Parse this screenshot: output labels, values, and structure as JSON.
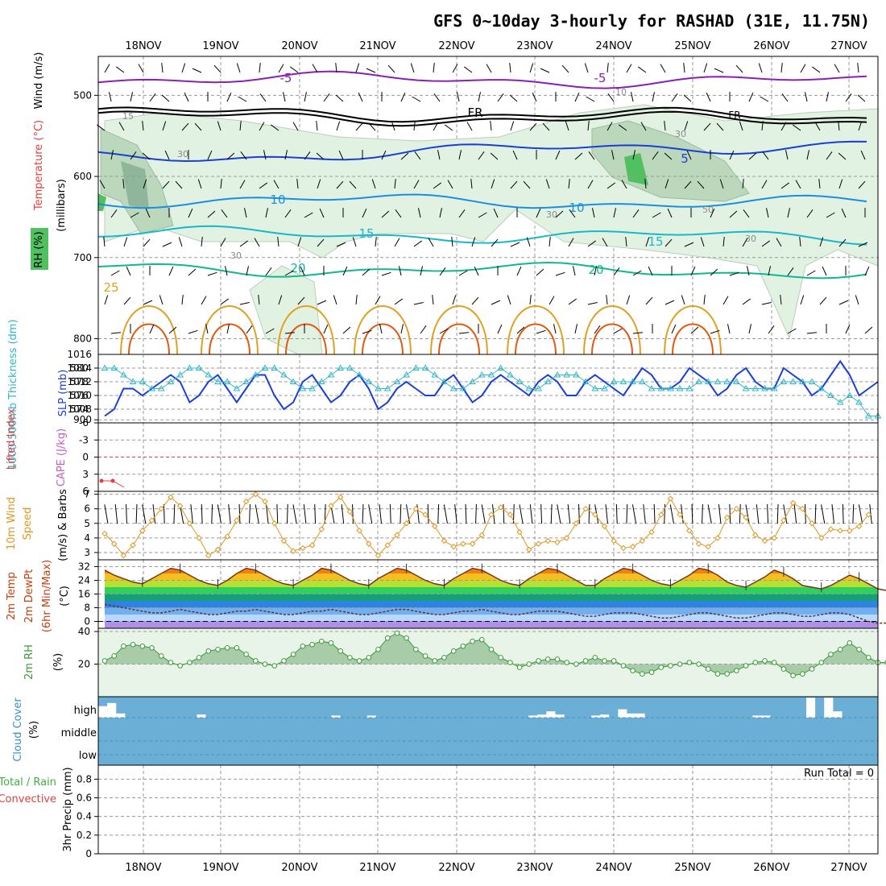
{
  "title": "GFS 0~10day 3-hourly for RASHAD (31E, 11.75N)",
  "dates": [
    "18NOV",
    "19NOV",
    "20NOV",
    "21NOV",
    "22NOV",
    "23NOV",
    "24NOV",
    "25NOV",
    "26NOV",
    "27NOV"
  ],
  "colors": {
    "purple": "#8a1fb8",
    "black": "#000000",
    "blue": "#1b3fd6",
    "lightblue": "#1a8fe0",
    "cyan": "#18b8c8",
    "teal": "#10b890",
    "orange": "#e0a020",
    "darkorange": "#e05a10",
    "rh_light": "#e2f2e2",
    "rh_mid": "#bcd8bc",
    "rh_dark": "#8fb59a",
    "rh_bright": "#50c060",
    "slp": "#1b3fd6",
    "thick": "#30b8c8",
    "li": "#e04040",
    "wind10": "#e0961e",
    "cloud": "#6baed6",
    "rh2m": "#3a9a3a",
    "rh2m_fill": "#a8cca8"
  },
  "chart_data": [
    {
      "type": "contour",
      "panel": "upper-air",
      "ylabel": "(millibars)",
      "side_labels": [
        "Wind (m/s)",
        "Temperature (°C)",
        "RH (%)"
      ],
      "y_ticks": [
        500,
        600,
        700,
        800,
        900
      ],
      "ylim": [
        1000,
        450
      ],
      "temperature_isotherms": [
        {
          "label": "-5",
          "level_mb": 488
        },
        {
          "label": "FR",
          "level_mb": 545
        },
        {
          "label": "5",
          "level_mb": 630
        },
        {
          "label": "10",
          "level_mb": 700
        },
        {
          "label": "15",
          "level_mb": 760
        },
        {
          "label": "20",
          "level_mb": 820
        },
        {
          "label": "25",
          "level_mb": 860
        }
      ],
      "rh_contour_labels": [
        "10",
        "15",
        "30",
        "30",
        "30",
        "30",
        "30",
        "50"
      ]
    },
    {
      "type": "line",
      "panel": "slp-thickness",
      "series": [
        {
          "name": "SLP (mb)",
          "axis": "right",
          "values": [
            1007,
            1008,
            1011,
            1011,
            1010,
            1011,
            1012,
            1013,
            1012,
            1009,
            1010,
            1012,
            1013,
            1011,
            1009,
            1011,
            1013,
            1013,
            1010,
            1008,
            1009,
            1012,
            1013,
            1011,
            1009,
            1010,
            1012,
            1013,
            1011,
            1008,
            1009,
            1011,
            1012,
            1011,
            1010,
            1010,
            1012,
            1013,
            1011,
            1009,
            1010,
            1012,
            1013,
            1012,
            1011,
            1010,
            1012,
            1013,
            1012,
            1010,
            1010,
            1012,
            1013,
            1012,
            1011,
            1010,
            1012,
            1014,
            1013,
            1011,
            1011,
            1012,
            1014,
            1013,
            1012,
            1010,
            1011,
            1013,
            1014,
            1012,
            1011,
            1011,
            1014,
            1013,
            1012,
            1010,
            1011,
            1013,
            1015,
            1013,
            1010,
            1011,
            1012
          ]
        },
        {
          "name": "1000-500mb Thickness (dm)",
          "axis": "left",
          "values": [
            580,
            580,
            579,
            578,
            578,
            577,
            577,
            578,
            579,
            580,
            580,
            579,
            578,
            578,
            577,
            578,
            579,
            580,
            580,
            579,
            578,
            577,
            577,
            578,
            579,
            580,
            580,
            579,
            578,
            577,
            577,
            578,
            579,
            580,
            580,
            579,
            578,
            577,
            577,
            578,
            579,
            579,
            580,
            579,
            578,
            577,
            577,
            578,
            579,
            579,
            579,
            578,
            577,
            577,
            578,
            578,
            578,
            578,
            577,
            577,
            577,
            577,
            577,
            578,
            578,
            578,
            578,
            578,
            577,
            577,
            577,
            577,
            578,
            578,
            578,
            578,
            577,
            576,
            575,
            576,
            575,
            573,
            573
          ]
        }
      ],
      "left_ticks": [
        574,
        576,
        578,
        580
      ],
      "right_ticks": [
        1008,
        1010,
        1012,
        1014,
        1016
      ]
    },
    {
      "type": "line",
      "panel": "instability",
      "series": [
        {
          "name": "Lifted Index",
          "values": [
            5,
            5,
            6
          ]
        },
        {
          "name": "CAPE (J/kg)",
          "values": []
        }
      ],
      "y_ticks": [
        "-6",
        "-3",
        "0",
        "3",
        "6"
      ],
      "ylim": [
        6,
        -6
      ]
    },
    {
      "type": "line",
      "panel": "wind-10m",
      "ylabel": "10m Wind Speed (m/s) & Barbs",
      "y_ticks": [
        3,
        4,
        5,
        6,
        7
      ],
      "ylim": [
        2.5,
        7.2
      ],
      "values": [
        4.3,
        3.6,
        2.8,
        3.5,
        4.5,
        5.2,
        6.0,
        6.8,
        6.2,
        5.0,
        4.0,
        2.8,
        3.2,
        4.1,
        5.2,
        6.5,
        7.0,
        6.5,
        5.0,
        3.8,
        3.1,
        3.3,
        3.5,
        4.6,
        6.2,
        6.8,
        5.8,
        4.5,
        3.6,
        2.8,
        3.5,
        4.2,
        5.0,
        6.0,
        5.6,
        4.8,
        3.8,
        3.4,
        3.6,
        3.6,
        4.2,
        5.6,
        6.1,
        5.6,
        4.4,
        3.2,
        3.6,
        3.8,
        3.7,
        4.0,
        5.0,
        6.0,
        5.6,
        4.8,
        3.8,
        3.3,
        3.4,
        3.8,
        4.4,
        5.6,
        6.7,
        5.6,
        4.5,
        3.6,
        3.4,
        4.0,
        5.4,
        6.0,
        5.4,
        4.2,
        3.8,
        4.0,
        5.2,
        6.4,
        6.0,
        5.0,
        4.0,
        4.6,
        4.5,
        4.5,
        4.8,
        5.6
      ]
    },
    {
      "type": "area",
      "panel": "temperature-2m",
      "ylabel": "2m Temp / 2m DewPt (6hr Min/Max) (°C)",
      "y_ticks": [
        0,
        8,
        16,
        24,
        32
      ],
      "ylim": [
        -4,
        36
      ],
      "temperature": [
        30,
        27,
        25,
        23,
        22,
        25,
        28,
        31,
        30,
        27,
        24,
        22,
        21,
        24,
        28,
        31,
        30,
        27,
        24,
        22,
        21,
        24,
        27,
        31,
        30,
        27,
        24,
        22,
        21,
        25,
        28,
        31,
        30,
        27,
        24,
        22,
        21,
        25,
        28,
        31,
        30,
        27,
        24,
        22,
        21,
        25,
        28,
        31,
        30,
        27,
        24,
        21,
        21,
        25,
        28,
        31,
        30,
        27,
        24,
        22,
        21,
        24,
        27,
        31,
        30,
        27,
        23,
        21,
        20,
        23,
        26,
        30,
        28,
        25,
        21,
        20,
        19,
        21,
        24,
        27,
        25,
        22,
        19,
        18,
        16,
        15,
        17
      ],
      "dewpoint": [
        10,
        9,
        8,
        7,
        6,
        5,
        5,
        6,
        7,
        6,
        5,
        4,
        4,
        5,
        6,
        6,
        7,
        6,
        5,
        4,
        4,
        5,
        6,
        6,
        7,
        6,
        5,
        4,
        4,
        5,
        6,
        7,
        7,
        6,
        5,
        4,
        4,
        5,
        6,
        6,
        7,
        6,
        5,
        4,
        4,
        5,
        6,
        6,
        6,
        5,
        4,
        3,
        3,
        4,
        5,
        5,
        5,
        4,
        3,
        2,
        2,
        3,
        4,
        5,
        5,
        4,
        3,
        2,
        2,
        3,
        4,
        5,
        5,
        4,
        3,
        3,
        4,
        5,
        5,
        4,
        2,
        0,
        -1,
        -1,
        1,
        2,
        3
      ]
    },
    {
      "type": "area",
      "panel": "rh-2m",
      "ylabel": "2m RH (%)",
      "y_ticks": [
        20,
        40
      ],
      "ylim": [
        0,
        42
      ],
      "values": [
        22,
        25,
        31,
        32,
        31,
        30,
        25,
        21,
        19,
        21,
        24,
        28,
        29,
        30,
        30,
        26,
        22,
        20,
        19,
        22,
        26,
        31,
        32,
        34,
        33,
        28,
        24,
        22,
        24,
        29,
        36,
        39,
        36,
        29,
        25,
        22,
        24,
        28,
        31,
        34,
        35,
        29,
        24,
        21,
        18,
        20,
        22,
        23,
        23,
        21,
        20,
        22,
        24,
        22,
        22,
        19,
        16,
        14,
        15,
        18,
        19,
        20,
        21,
        20,
        17,
        14,
        14,
        16,
        19,
        21,
        22,
        21,
        17,
        13,
        14,
        17,
        21,
        26,
        29,
        33,
        29,
        24,
        21,
        21,
        24,
        26
      ]
    },
    {
      "type": "bar",
      "panel": "cloud-cover",
      "ylabel": "Cloud Cover (%)",
      "levels": [
        "high",
        "middle",
        "low"
      ],
      "high_clear_fraction": [
        0.55,
        0.7,
        0.2,
        0,
        0,
        0,
        0,
        0,
        0,
        0,
        0,
        0.15,
        0,
        0,
        0,
        0,
        0,
        0,
        0,
        0,
        0,
        0,
        0,
        0,
        0,
        0,
        0.1,
        0,
        0,
        0,
        0.1,
        0,
        0,
        0,
        0,
        0,
        0,
        0,
        0,
        0,
        0,
        0,
        0,
        0,
        0,
        0,
        0,
        0,
        0.1,
        0.15,
        0.3,
        0.15,
        0,
        0,
        0,
        0.1,
        0.15,
        0,
        0.4,
        0.2,
        0.2,
        0,
        0,
        0,
        0,
        0,
        0,
        0,
        0,
        0,
        0,
        0,
        0,
        0.1,
        0.1,
        0,
        0,
        0,
        0,
        0.95,
        0,
        0.95,
        0.3,
        0,
        0,
        0,
        0
      ]
    },
    {
      "type": "bar",
      "panel": "precipitation",
      "ylabel": "3hr Precip (mm)",
      "side_labels": [
        "Total / Rain",
        "Convective"
      ],
      "y_ticks": [
        "0",
        "0.2",
        "0.4",
        "0.6",
        "0.8"
      ],
      "ylim": [
        0,
        0.95
      ],
      "values": [],
      "run_total_label": "Run Total = 0"
    }
  ]
}
